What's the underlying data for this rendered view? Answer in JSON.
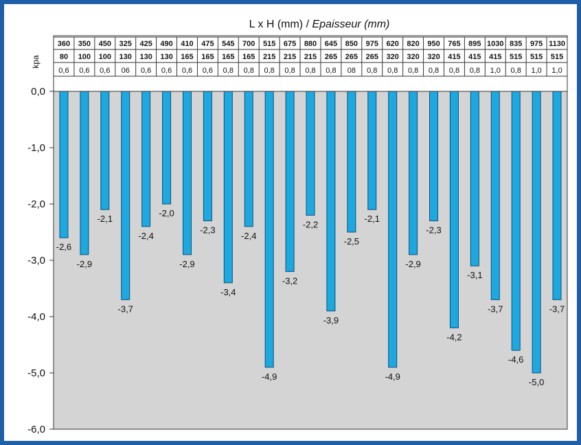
{
  "chart_data": {
    "type": "bar",
    "title_main": "L x H (mm) / ",
    "title_italic": "Epaisseur (mm)",
    "ylabel": "kpa",
    "ylim": [
      -6.0,
      0.0
    ],
    "yticks": [
      "0,0",
      "-1,0",
      "-2,0",
      "-3,0",
      "-4,0",
      "-5,0",
      "-6,0"
    ],
    "ytick_values": [
      0,
      -1,
      -2,
      -3,
      -4,
      -5,
      -6
    ],
    "row_L": [
      "360",
      "350",
      "450",
      "325",
      "425",
      "490",
      "410",
      "475",
      "545",
      "700",
      "515",
      "675",
      "880",
      "645",
      "850",
      "975",
      "620",
      "820",
      "950",
      "765",
      "895",
      "1030",
      "835",
      "975",
      "1130"
    ],
    "row_H": [
      "80",
      "100",
      "100",
      "130",
      "130",
      "130",
      "165",
      "165",
      "165",
      "165",
      "215",
      "215",
      "215",
      "265",
      "265",
      "265",
      "320",
      "320",
      "320",
      "415",
      "415",
      "415",
      "515",
      "515",
      "515"
    ],
    "row_thickness": [
      "0,6",
      "0,6",
      "0,6",
      "06",
      "0,6",
      "0,6",
      "0,6",
      "0,6",
      "0,8",
      "0,8",
      "0,8",
      "0,8",
      "0,8",
      "0,8",
      "08",
      "0,8",
      "0,8",
      "0,8",
      "0,8",
      "0,8",
      "0,8",
      "1,0",
      "0,8",
      "1,0",
      "1,0"
    ],
    "values": [
      -2.6,
      -2.9,
      -2.1,
      -3.7,
      -2.4,
      -2.0,
      -2.9,
      -2.3,
      -3.4,
      -2.4,
      -4.9,
      -3.2,
      -2.2,
      -3.9,
      -2.5,
      -2.1,
      -4.9,
      -2.9,
      -2.3,
      -4.2,
      -3.1,
      -3.7,
      -4.6,
      -5.0,
      -3.7
    ],
    "value_labels": [
      "-2,6",
      "-2,9",
      "-2,1",
      "-3,7",
      "-2,4",
      "-2,0",
      "-2,9",
      "-2,3",
      "-3,4",
      "-2,4",
      "-4,9",
      "-3,2",
      "-2,2",
      "-3,9",
      "-2,5",
      "-2,1",
      "-4,9",
      "-2,9",
      "-2,3",
      "-4,2",
      "-3,1",
      "-3,7",
      "-4,6",
      "-5,0",
      "-3,7"
    ],
    "colors": {
      "bar": "#1ea8e0",
      "bar_stroke": "#0a4f7a",
      "plot_bg": "#d4d4d4",
      "frame": "#1f5fa8"
    }
  }
}
